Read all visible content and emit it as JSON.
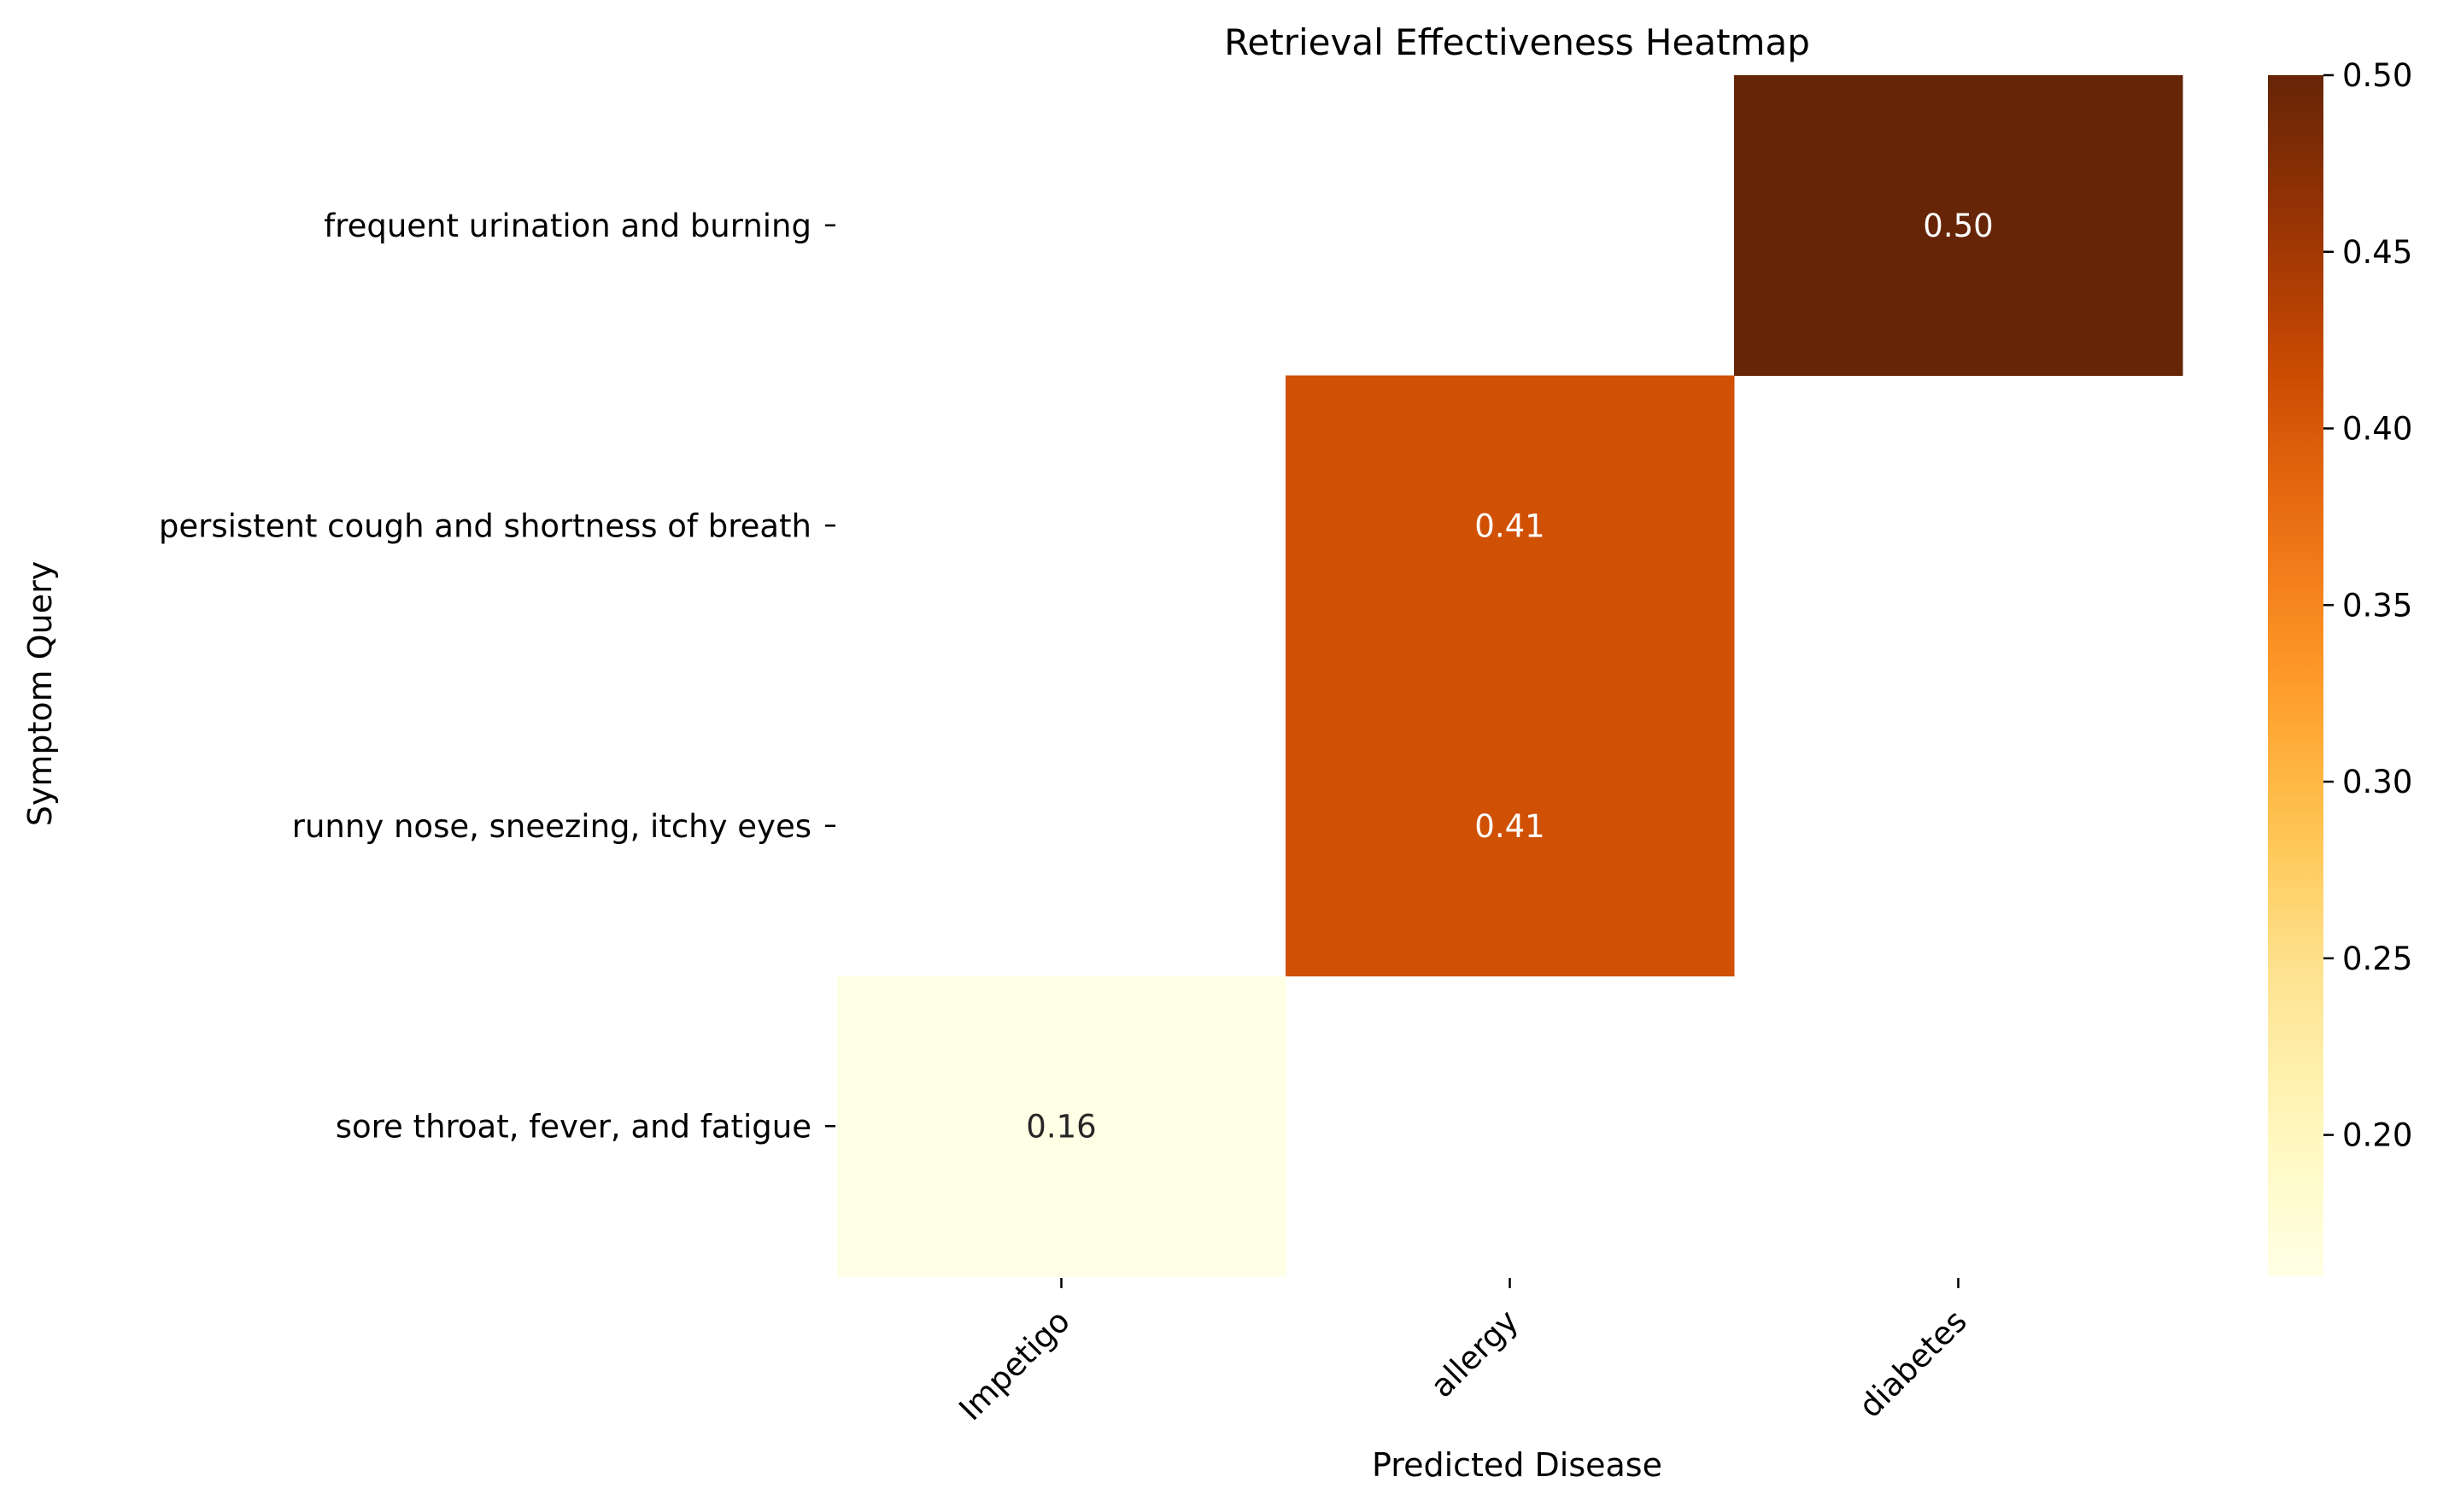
{
  "chart_data": {
    "type": "heatmap",
    "title": "Retrieval Effectiveness Heatmap",
    "xlabel": "Predicted Disease",
    "ylabel": "Symptom Query",
    "x_categories": [
      "Impetigo",
      "allergy",
      "diabetes"
    ],
    "y_categories": [
      "frequent urination and burning",
      "persistent cough and shortness of breath",
      "runny nose, sneezing, itchy eyes",
      "sore throat, fever, and fatigue"
    ],
    "cells": [
      {
        "y": "frequent urination and burning",
        "x": "diabetes",
        "value": 0.5,
        "label": "0.50"
      },
      {
        "y": "persistent cough and shortness of breath",
        "x": "allergy",
        "value": 0.41,
        "label": "0.41"
      },
      {
        "y": "runny nose, sneezing, itchy eyes",
        "x": "allergy",
        "value": 0.41,
        "label": "0.41"
      },
      {
        "y": "sore throat, fever, and fatigue",
        "x": "Impetigo",
        "value": 0.16,
        "label": "0.16"
      }
    ],
    "colormap": "YlOrBr",
    "colorbar": {
      "range": [
        0.16,
        0.5
      ],
      "ticks": [
        0.2,
        0.25,
        0.3,
        0.35,
        0.4,
        0.45,
        0.5
      ],
      "tick_labels": [
        "0.20",
        "0.25",
        "0.30",
        "0.35",
        "0.40",
        "0.45",
        "0.50"
      ]
    },
    "missing_cells": "blank",
    "grid": false,
    "legend": "colorbar-right"
  }
}
